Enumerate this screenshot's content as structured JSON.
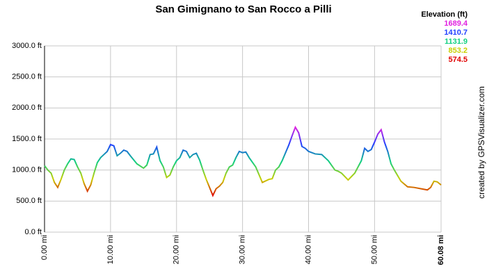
{
  "chart_data": {
    "type": "line",
    "title": "San Gimignano to San Rocco a Pilli",
    "x": [
      0,
      0.5,
      1,
      1.5,
      2,
      2.5,
      3,
      3.5,
      4,
      4.5,
      5,
      5.5,
      6,
      6.5,
      7,
      7.5,
      8,
      8.5,
      9,
      9.5,
      10,
      10.5,
      11,
      11.5,
      12,
      12.5,
      13,
      14,
      15,
      15.5,
      16,
      16.5,
      17,
      17.5,
      18,
      18.5,
      19,
      19.5,
      20,
      20.5,
      21,
      21.5,
      22,
      22.5,
      23,
      23.5,
      24,
      24.5,
      25,
      25.5,
      26,
      26.5,
      27,
      27.5,
      28,
      28.5,
      29,
      29.5,
      30,
      30.5,
      31,
      32,
      33,
      34,
      34.5,
      35,
      35.5,
      36,
      37,
      37.5,
      38,
      38.5,
      39,
      39.5,
      40,
      41,
      42,
      43,
      44,
      44.5,
      45,
      46,
      47,
      48,
      48.5,
      49,
      49.5,
      50,
      50.5,
      51,
      51.5,
      52,
      52.5,
      53,
      54,
      55,
      56,
      57,
      58,
      58.5,
      59,
      59.5,
      60.08
    ],
    "values": [
      1070,
      1000,
      950,
      800,
      720,
      850,
      1000,
      1100,
      1180,
      1170,
      1050,
      950,
      780,
      660,
      760,
      950,
      1120,
      1200,
      1250,
      1300,
      1410,
      1390,
      1230,
      1270,
      1320,
      1300,
      1230,
      1100,
      1030,
      1080,
      1250,
      1260,
      1370,
      1150,
      1050,
      880,
      920,
      1050,
      1150,
      1200,
      1320,
      1300,
      1200,
      1250,
      1270,
      1160,
      1000,
      850,
      720,
      590,
      700,
      740,
      800,
      950,
      1050,
      1080,
      1200,
      1300,
      1280,
      1290,
      1200,
      1050,
      800,
      850,
      860,
      1000,
      1050,
      1150,
      1400,
      1550,
      1690,
      1600,
      1380,
      1350,
      1300,
      1260,
      1250,
      1150,
      1000,
      980,
      950,
      840,
      950,
      1150,
      1350,
      1300,
      1330,
      1450,
      1580,
      1650,
      1450,
      1300,
      1100,
      1000,
      820,
      730,
      720,
      700,
      680,
      720,
      820,
      810,
      760
    ],
    "xlim": [
      0,
      60.08
    ],
    "ylim": [
      0,
      3000
    ],
    "xticks": [
      {
        "value": 0,
        "label": "0.00 mi"
      },
      {
        "value": 10,
        "label": "10.00 mi"
      },
      {
        "value": 20,
        "label": "20.00 mi"
      },
      {
        "value": 30,
        "label": "30.00 mi"
      },
      {
        "value": 40,
        "label": "40.00 mi"
      },
      {
        "value": 50,
        "label": "50.00 mi"
      },
      {
        "value": 60.08,
        "label": "60.08 mi"
      }
    ],
    "yticks": [
      {
        "value": 0,
        "label": "0.0 ft"
      },
      {
        "value": 500,
        "label": "500.0 ft"
      },
      {
        "value": 1000,
        "label": "1000.0 ft"
      },
      {
        "value": 1500,
        "label": "1500.0 ft"
      },
      {
        "value": 2000,
        "label": "2000.0 ft"
      },
      {
        "value": 2500,
        "label": "2500.0 ft"
      },
      {
        "value": 3000,
        "label": "3000.0 ft"
      }
    ],
    "grid": true,
    "legend": {
      "title": "Elevation (ft)",
      "position": "top-right",
      "items": [
        {
          "value": 1689.4,
          "color": "#e020e0"
        },
        {
          "value": 1410.7,
          "color": "#2040ff"
        },
        {
          "value": 1131.9,
          "color": "#10d080"
        },
        {
          "value": 853.2,
          "color": "#c8d000"
        },
        {
          "value": 574.5,
          "color": "#e00000"
        }
      ]
    },
    "credit": "created by GPSVisualizer.com"
  }
}
